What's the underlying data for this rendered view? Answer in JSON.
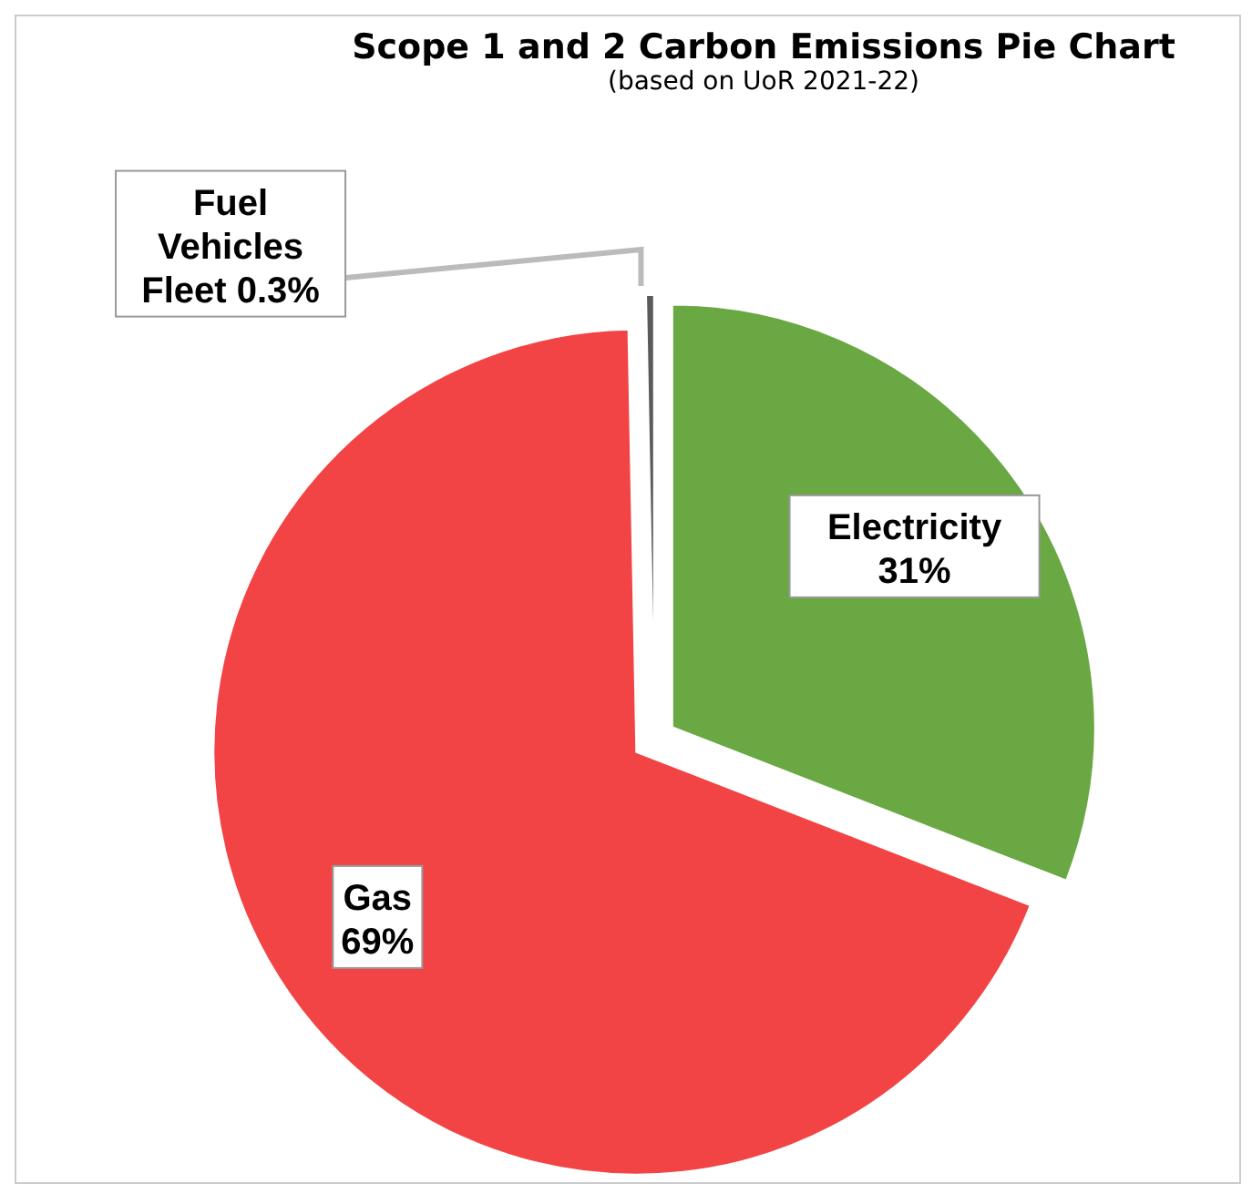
{
  "chart_data": {
    "type": "pie",
    "title": "Scope 1 and 2 Carbon Emissions Pie Chart",
    "subtitle": "(based on UoR 2021-22)",
    "categories": [
      "Electricity",
      "Gas",
      "Fuel Vehicles Fleet"
    ],
    "values": [
      31,
      69,
      0.3
    ],
    "colors": [
      "#6aa843",
      "#f24444",
      "#5a5a5a"
    ],
    "value_labels": [
      "31%",
      "69%",
      "0.3%"
    ]
  }
}
